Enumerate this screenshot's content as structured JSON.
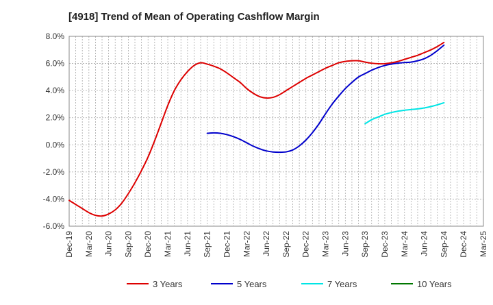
{
  "chart_data": {
    "type": "line",
    "title": "[4918]  Trend of Mean of Operating Cashflow Margin",
    "xlabel": "",
    "ylabel": "",
    "ylim": [
      -6.0,
      8.0
    ],
    "y_ticks": [
      "8.0%",
      "6.0%",
      "4.0%",
      "2.0%",
      "0.0%",
      "-2.0%",
      "-4.0%",
      "-6.0%"
    ],
    "x_ticks": [
      "Dec-19",
      "Mar-20",
      "Jun-20",
      "Sep-20",
      "Dec-20",
      "Mar-21",
      "Jun-21",
      "Sep-21",
      "Dec-21",
      "Mar-22",
      "Jun-22",
      "Sep-22",
      "Dec-22",
      "Mar-23",
      "Jun-23",
      "Sep-23",
      "Dec-23",
      "Mar-24",
      "Jun-24",
      "Sep-24",
      "Dec-24",
      "Mar-25"
    ],
    "x_ticks_rendered": [
      "Dec-19",
      "Mar-20",
      "Jun-20",
      "Sep-20",
      "Dec-20",
      "Mar-21",
      "Jun-21",
      "Sep-21",
      "Dec-21",
      "Mar-22",
      "Jun-22",
      "Sep-22",
      "Dec-22",
      "Mar-23",
      "Jun-23",
      "Sep-23",
      "Dec-23",
      "Mar-24",
      "Jun-24",
      "Sep-24",
      "Dec-24",
      "Mar-25"
    ],
    "grid": true,
    "legend_position": "bottom",
    "series": [
      {
        "name": "3 Years",
        "color": "#dd0000",
        "x": [
          "Dec-19",
          "Jan-20",
          "Feb-20",
          "Mar-20",
          "Apr-20",
          "May-20",
          "Jun-20",
          "Jul-20",
          "Aug-20",
          "Sep-20",
          "Oct-20",
          "Nov-20",
          "Dec-20",
          "Jan-21",
          "Feb-21",
          "Mar-21",
          "Apr-21",
          "May-21",
          "Jun-21",
          "Jul-21",
          "Aug-21",
          "Sep-21",
          "Oct-21",
          "Nov-21",
          "Dec-21",
          "Jan-22",
          "Feb-22",
          "Mar-22",
          "Apr-22",
          "May-22",
          "Jun-22",
          "Jul-22",
          "Aug-22",
          "Sep-22",
          "Oct-22",
          "Nov-22",
          "Dec-22",
          "Jan-23",
          "Feb-23",
          "Mar-23",
          "Apr-23",
          "May-23",
          "Jun-23",
          "Jul-23",
          "Aug-23",
          "Sep-23",
          "Oct-23",
          "Nov-23",
          "Dec-23",
          "Jan-24",
          "Feb-24",
          "Mar-24",
          "Apr-24",
          "May-24",
          "Jun-24",
          "Jul-24",
          "Aug-24",
          "Sep-24"
        ],
        "values": [
          -4.1,
          -4.4,
          -4.7,
          -5.0,
          -5.2,
          -5.25,
          -5.1,
          -4.8,
          -4.3,
          -3.6,
          -2.8,
          -1.9,
          -0.9,
          0.3,
          1.6,
          2.9,
          4.0,
          4.8,
          5.4,
          5.85,
          6.05,
          5.95,
          5.8,
          5.6,
          5.3,
          4.95,
          4.6,
          4.15,
          3.8,
          3.55,
          3.45,
          3.5,
          3.7,
          4.0,
          4.3,
          4.6,
          4.9,
          5.15,
          5.4,
          5.65,
          5.85,
          6.05,
          6.15,
          6.2,
          6.2,
          6.1,
          6.02,
          5.98,
          5.98,
          6.05,
          6.15,
          6.3,
          6.45,
          6.6,
          6.8,
          7.0,
          7.25,
          7.55
        ]
      },
      {
        "name": "5 Years",
        "color": "#0000cc",
        "x": [
          "Sep-21",
          "Oct-21",
          "Nov-21",
          "Dec-21",
          "Jan-22",
          "Feb-22",
          "Mar-22",
          "Apr-22",
          "May-22",
          "Jun-22",
          "Jul-22",
          "Aug-22",
          "Sep-22",
          "Oct-22",
          "Nov-22",
          "Dec-22",
          "Jan-23",
          "Feb-23",
          "Mar-23",
          "Apr-23",
          "May-23",
          "Jun-23",
          "Jul-23",
          "Aug-23",
          "Sep-23",
          "Oct-23",
          "Nov-23",
          "Dec-23",
          "Jan-24",
          "Feb-24",
          "Mar-24",
          "Apr-24",
          "May-24",
          "Jun-24",
          "Jul-24",
          "Aug-24",
          "Sep-24"
        ],
        "values": [
          0.85,
          0.88,
          0.85,
          0.75,
          0.6,
          0.4,
          0.15,
          -0.1,
          -0.3,
          -0.45,
          -0.53,
          -0.55,
          -0.52,
          -0.38,
          -0.08,
          0.35,
          0.9,
          1.55,
          2.3,
          3.0,
          3.6,
          4.15,
          4.6,
          5.0,
          5.25,
          5.5,
          5.7,
          5.85,
          5.95,
          6.02,
          6.07,
          6.1,
          6.2,
          6.35,
          6.6,
          6.95,
          7.35
        ]
      },
      {
        "name": "7 Years",
        "color": "#00e5e5",
        "x": [
          "Sep-23",
          "Oct-23",
          "Nov-23",
          "Dec-23",
          "Jan-24",
          "Feb-24",
          "Mar-24",
          "Apr-24",
          "May-24",
          "Jun-24",
          "Jul-24",
          "Aug-24",
          "Sep-24"
        ],
        "values": [
          1.55,
          1.85,
          2.05,
          2.25,
          2.38,
          2.48,
          2.55,
          2.6,
          2.65,
          2.72,
          2.82,
          2.95,
          3.1
        ]
      },
      {
        "name": "10 Years",
        "color": "#007700",
        "x": [],
        "values": []
      }
    ]
  }
}
